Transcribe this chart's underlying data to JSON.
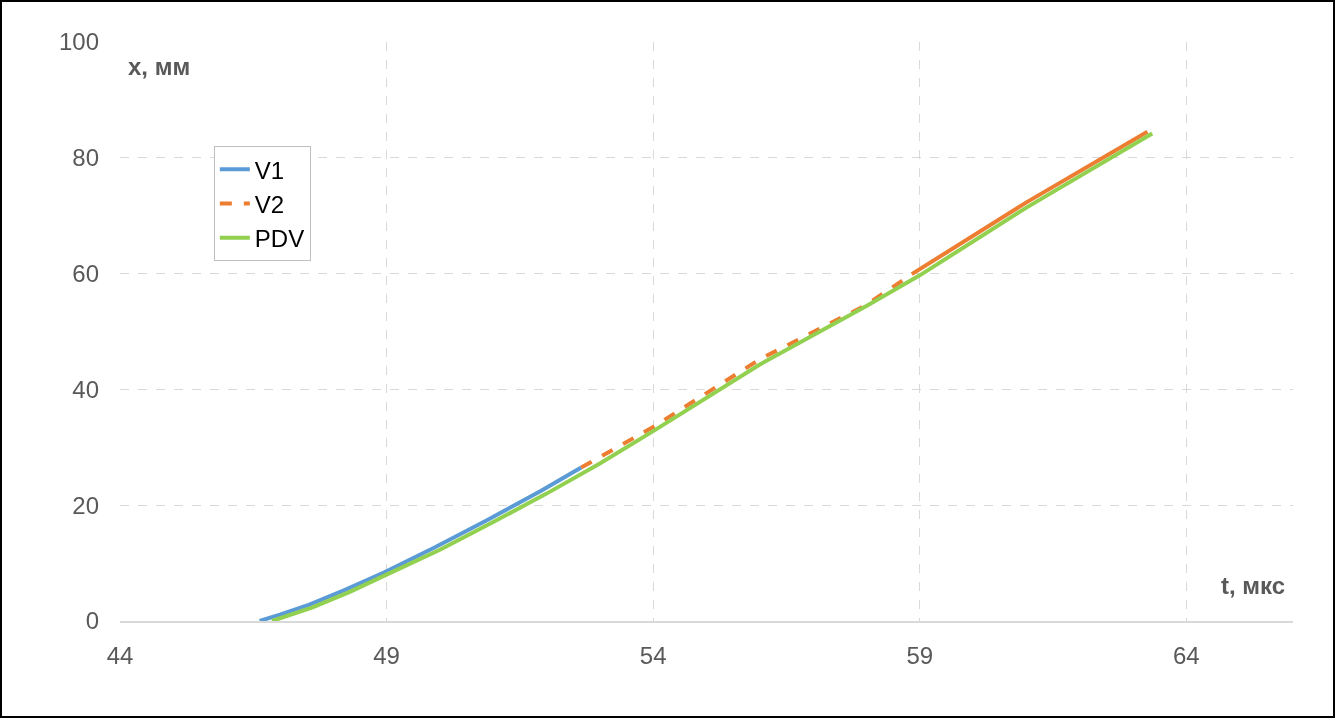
{
  "chart_data": {
    "type": "line",
    "xlabel": "t, мкс",
    "ylabel": "x, мм",
    "xlim": [
      44,
      66
    ],
    "xticks": [
      44,
      49,
      54,
      59,
      64
    ],
    "ylim": [
      0,
      100
    ],
    "yticks": [
      0,
      20,
      40,
      60,
      80,
      100
    ],
    "grid": true,
    "legend": "top left",
    "marker": "none",
    "series": [
      {
        "name": "V1",
        "color": "#5b9bd5",
        "line_style": "solid",
        "x": [
          46.62,
          47.0,
          47.54,
          48.2,
          48.96,
          49.9,
          50.9,
          51.9,
          52.65
        ],
        "values": [
          0,
          1.1,
          2.8,
          5.3,
          8.4,
          12.7,
          17.5,
          22.5,
          26.5
        ]
      },
      {
        "name": "V2",
        "color": "#ed7d31",
        "line_style": "dashed",
        "x": [
          52.65,
          54,
          56,
          58,
          58.85
        ],
        "values": [
          26.5,
          33.5,
          45.2,
          54.6,
          59.9
        ]
      },
      {
        "color": "#ed7d31",
        "line_style": "solid",
        "x": [
          58.85,
          61,
          63.27
        ],
        "values": [
          59.9,
          72.3,
          84.5
        ]
      },
      {
        "name": "PDV",
        "color": "#92d050",
        "line_style": "solid",
        "x": [
          46.85,
          47.6,
          48.3,
          49,
          50,
          51,
          52,
          53,
          54,
          56,
          58,
          59,
          61,
          63.36
        ],
        "values": [
          0,
          2.3,
          5,
          8,
          12.3,
          17.1,
          22,
          27.2,
          32.8,
          44.3,
          54.4,
          59.7,
          71.4,
          84.2
        ]
      }
    ]
  }
}
